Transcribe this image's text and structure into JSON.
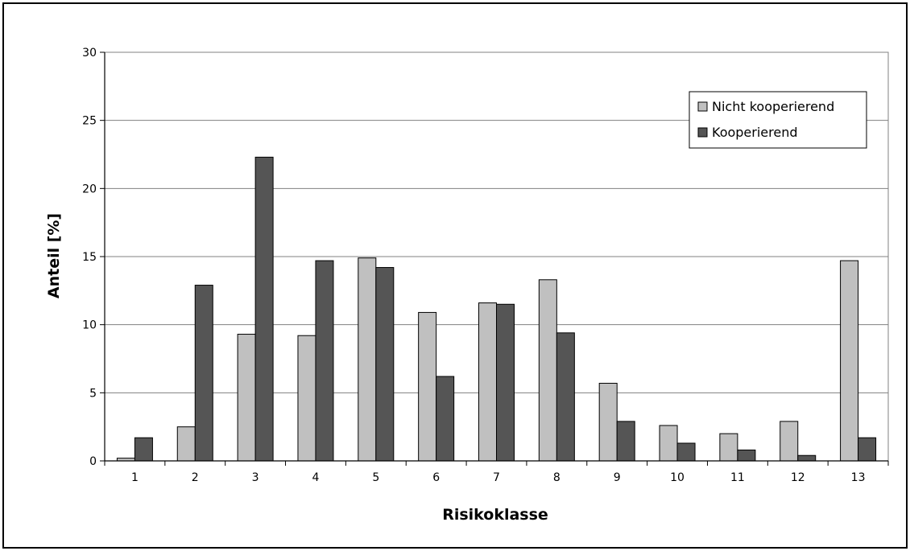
{
  "chart_data": {
    "type": "bar",
    "title": "",
    "xlabel": "Risikoklasse",
    "ylabel": "Anteil [%]",
    "categories": [
      "1",
      "2",
      "3",
      "4",
      "5",
      "6",
      "7",
      "8",
      "9",
      "10",
      "11",
      "12",
      "13"
    ],
    "series": [
      {
        "name": "Nicht kooperierend",
        "color": "#c0c0c0",
        "values": [
          0.2,
          2.5,
          9.3,
          9.2,
          14.9,
          10.9,
          11.6,
          13.3,
          5.7,
          2.6,
          2.0,
          2.9,
          14.7
        ]
      },
      {
        "name": "Kooperierend",
        "color": "#555555",
        "values": [
          1.7,
          12.9,
          22.3,
          14.7,
          14.2,
          6.2,
          11.5,
          9.4,
          2.9,
          1.3,
          0.8,
          0.4,
          1.7
        ]
      }
    ],
    "ylim": [
      0,
      30
    ],
    "yticks": [
      0,
      5,
      10,
      15,
      20,
      25,
      30
    ],
    "grid": true,
    "legend_position": "top-right"
  }
}
